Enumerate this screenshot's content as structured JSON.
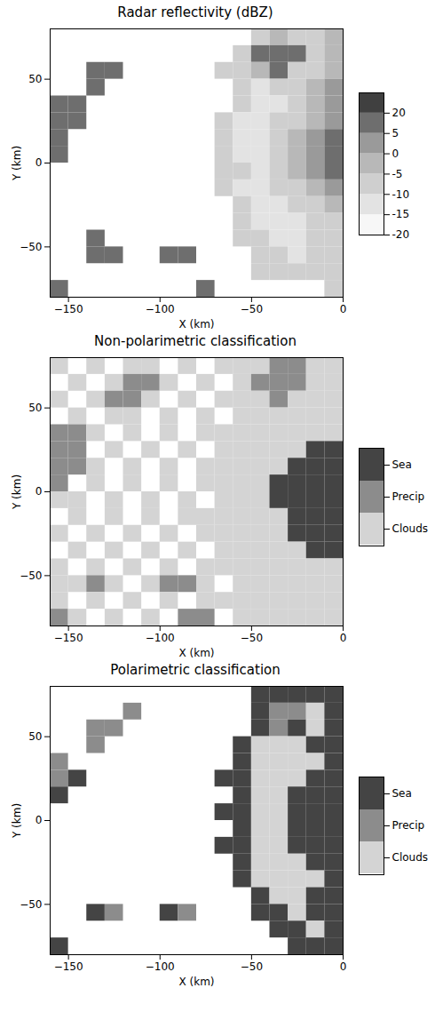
{
  "chart_data": [
    {
      "type": "heatmap",
      "title": "Radar reflectivity (dBZ)",
      "x_label": "X (km)",
      "y_label": "Y (km)",
      "xlim": [
        -160,
        0
      ],
      "xticks": [
        -150,
        -100,
        -50,
        0
      ],
      "ylim": [
        -80,
        80
      ],
      "yticks": [
        -50,
        0,
        50
      ],
      "x_edges": [
        -160,
        -150,
        -140,
        -130,
        -120,
        -110,
        -100,
        -90,
        -80,
        -70,
        -60,
        -50,
        -40,
        -30,
        -20,
        -10,
        0
      ],
      "y_edges": [
        80,
        70,
        60,
        50,
        40,
        30,
        20,
        10,
        0,
        -10,
        -20,
        -30,
        -40,
        -50,
        -60,
        -70,
        -80
      ],
      "cells": [
        [
          null,
          null,
          null,
          null,
          null,
          null,
          null,
          null,
          null,
          null,
          null,
          -10,
          -5,
          -10,
          -10,
          -5
        ],
        [
          null,
          null,
          null,
          null,
          null,
          null,
          null,
          null,
          null,
          null,
          -10,
          10,
          10,
          5,
          -10,
          -5
        ],
        [
          null,
          null,
          10,
          10,
          null,
          null,
          null,
          null,
          null,
          -10,
          -10,
          -5,
          5,
          -10,
          -10,
          -5
        ],
        [
          null,
          null,
          5,
          null,
          null,
          null,
          null,
          null,
          null,
          null,
          -10,
          -15,
          -10,
          -10,
          -5,
          0
        ],
        [
          10,
          10,
          null,
          null,
          null,
          null,
          null,
          null,
          null,
          null,
          -10,
          -15,
          -15,
          -10,
          -5,
          0
        ],
        [
          10,
          5,
          null,
          null,
          null,
          null,
          null,
          null,
          null,
          -10,
          -15,
          -15,
          -10,
          -10,
          -5,
          0
        ],
        [
          10,
          null,
          null,
          null,
          null,
          null,
          null,
          null,
          null,
          -10,
          -15,
          -15,
          -10,
          -5,
          0,
          5
        ],
        [
          5,
          null,
          null,
          null,
          null,
          null,
          null,
          null,
          null,
          -10,
          -15,
          -15,
          -10,
          -5,
          0,
          5
        ],
        [
          null,
          null,
          null,
          null,
          null,
          null,
          null,
          null,
          null,
          -10,
          -10,
          -15,
          -10,
          -5,
          0,
          5
        ],
        [
          null,
          null,
          null,
          null,
          null,
          null,
          null,
          null,
          null,
          -10,
          -15,
          -15,
          -10,
          -10,
          -5,
          0
        ],
        [
          null,
          null,
          null,
          null,
          null,
          null,
          null,
          null,
          null,
          null,
          -10,
          -15,
          -15,
          -10,
          -10,
          -5
        ],
        [
          null,
          null,
          null,
          null,
          null,
          null,
          null,
          null,
          null,
          null,
          -10,
          -15,
          -15,
          -15,
          -10,
          -10
        ],
        [
          null,
          null,
          5,
          null,
          null,
          null,
          null,
          null,
          null,
          null,
          -10,
          -10,
          -15,
          -15,
          -10,
          -10
        ],
        [
          null,
          null,
          10,
          5,
          null,
          null,
          10,
          5,
          null,
          null,
          null,
          -10,
          -10,
          -15,
          -10,
          -10
        ],
        [
          null,
          null,
          null,
          null,
          null,
          null,
          null,
          null,
          null,
          null,
          null,
          -10,
          -10,
          -10,
          -10,
          -10
        ],
        [
          5,
          null,
          null,
          null,
          null,
          null,
          null,
          null,
          10,
          null,
          null,
          null,
          null,
          null,
          null,
          -10
        ]
      ],
      "colorbar": {
        "ticks": [
          -20,
          -15,
          -10,
          -5,
          0,
          5,
          20
        ],
        "colors": [
          "#f7f7f7",
          "#e3e3e3",
          "#cfcfcf",
          "#b8b8b8",
          "#9a9a9a",
          "#6e6e6e",
          "#404040"
        ]
      }
    },
    {
      "type": "category_map",
      "title": "Non-polarimetric classification",
      "x_label": "X (km)",
      "y_label": "Y (km)",
      "xlim": [
        -160,
        0
      ],
      "xticks": [
        -150,
        -100,
        -50,
        0
      ],
      "ylim": [
        -80,
        80
      ],
      "yticks": [
        -50,
        0,
        50
      ],
      "x_edges": [
        -160,
        -150,
        -140,
        -130,
        -120,
        -110,
        -100,
        -90,
        -80,
        -70,
        -60,
        -50,
        -40,
        -30,
        -20,
        -10,
        0
      ],
      "y_edges": [
        80,
        70,
        60,
        50,
        40,
        30,
        20,
        10,
        0,
        -10,
        -20,
        -30,
        -40,
        -50,
        -60,
        -70,
        -80
      ],
      "cells": [
        [
          "Clouds",
          null,
          "Clouds",
          null,
          "Clouds",
          "Clouds",
          null,
          "Clouds",
          null,
          "Clouds",
          "Clouds",
          "Clouds",
          "Precip",
          "Precip",
          "Clouds",
          "Clouds"
        ],
        [
          null,
          "Clouds",
          null,
          "Clouds",
          "Precip",
          "Precip",
          "Clouds",
          null,
          "Clouds",
          null,
          "Clouds",
          "Precip",
          "Precip",
          "Precip",
          "Clouds",
          "Clouds"
        ],
        [
          "Clouds",
          null,
          "Clouds",
          "Precip",
          "Precip",
          "Clouds",
          null,
          "Clouds",
          null,
          "Clouds",
          "Clouds",
          "Clouds",
          "Precip",
          "Clouds",
          "Clouds",
          "Clouds"
        ],
        [
          null,
          "Clouds",
          null,
          "Clouds",
          "Clouds",
          null,
          "Clouds",
          null,
          "Clouds",
          null,
          "Clouds",
          "Clouds",
          "Clouds",
          "Clouds",
          "Clouds",
          "Clouds"
        ],
        [
          "Precip",
          "Precip",
          "Clouds",
          null,
          "Clouds",
          null,
          "Clouds",
          null,
          "Clouds",
          "Clouds",
          "Clouds",
          "Clouds",
          "Clouds",
          "Clouds",
          "Clouds",
          "Clouds"
        ],
        [
          "Precip",
          "Precip",
          null,
          "Clouds",
          null,
          "Clouds",
          null,
          "Clouds",
          null,
          "Clouds",
          "Clouds",
          "Clouds",
          "Clouds",
          "Clouds",
          "Sea",
          "Sea"
        ],
        [
          "Precip",
          "Precip",
          "Clouds",
          null,
          "Clouds",
          null,
          "Clouds",
          null,
          "Clouds",
          "Clouds",
          "Clouds",
          "Clouds",
          "Clouds",
          "Sea",
          "Sea",
          "Sea"
        ],
        [
          "Precip",
          null,
          "Clouds",
          null,
          "Clouds",
          null,
          "Clouds",
          null,
          "Clouds",
          "Clouds",
          "Clouds",
          "Clouds",
          "Sea",
          "Sea",
          "Sea",
          "Sea"
        ],
        [
          "Clouds",
          "Clouds",
          null,
          "Clouds",
          null,
          "Clouds",
          null,
          "Clouds",
          null,
          "Clouds",
          "Clouds",
          "Clouds",
          "Sea",
          "Sea",
          "Sea",
          "Sea"
        ],
        [
          null,
          "Clouds",
          null,
          "Clouds",
          null,
          "Clouds",
          null,
          "Clouds",
          "Clouds",
          "Clouds",
          "Clouds",
          "Clouds",
          "Clouds",
          "Sea",
          "Sea",
          "Sea"
        ],
        [
          "Clouds",
          null,
          "Clouds",
          null,
          "Clouds",
          null,
          "Clouds",
          null,
          "Clouds",
          "Clouds",
          "Clouds",
          "Clouds",
          "Clouds",
          "Sea",
          "Sea",
          "Sea"
        ],
        [
          null,
          "Clouds",
          null,
          "Clouds",
          null,
          "Clouds",
          null,
          "Clouds",
          null,
          "Clouds",
          "Clouds",
          "Clouds",
          "Clouds",
          "Clouds",
          "Sea",
          "Sea"
        ],
        [
          "Clouds",
          null,
          "Clouds",
          null,
          "Clouds",
          null,
          "Clouds",
          null,
          "Clouds",
          "Clouds",
          "Clouds",
          "Clouds",
          "Clouds",
          "Clouds",
          "Clouds",
          "Clouds"
        ],
        [
          "Clouds",
          "Clouds",
          "Precip",
          "Clouds",
          null,
          "Clouds",
          "Precip",
          "Precip",
          "Clouds",
          null,
          "Clouds",
          "Clouds",
          "Clouds",
          "Clouds",
          "Clouds",
          "Clouds"
        ],
        [
          "Clouds",
          null,
          "Clouds",
          null,
          "Clouds",
          null,
          "Clouds",
          null,
          "Clouds",
          "Clouds",
          "Clouds",
          "Clouds",
          "Clouds",
          "Clouds",
          "Clouds",
          "Clouds"
        ],
        [
          "Precip",
          "Clouds",
          null,
          "Clouds",
          null,
          "Clouds",
          null,
          "Precip",
          "Precip",
          null,
          "Clouds",
          "Clouds",
          "Clouds",
          "Clouds",
          "Clouds",
          "Clouds"
        ]
      ],
      "colorbar": {
        "classes": [
          "Sea",
          "Precip",
          "Clouds"
        ],
        "colors": [
          "#444444",
          "#8c8c8c",
          "#d4d4d4"
        ]
      }
    },
    {
      "type": "category_map",
      "title": "Polarimetric classification",
      "x_label": "X (km)",
      "y_label": "Y (km)",
      "xlim": [
        -160,
        0
      ],
      "xticks": [
        -150,
        -100,
        -50,
        0
      ],
      "ylim": [
        -80,
        80
      ],
      "yticks": [
        -50,
        0,
        50
      ],
      "x_edges": [
        -160,
        -150,
        -140,
        -130,
        -120,
        -110,
        -100,
        -90,
        -80,
        -70,
        -60,
        -50,
        -40,
        -30,
        -20,
        -10,
        0
      ],
      "y_edges": [
        80,
        70,
        60,
        50,
        40,
        30,
        20,
        10,
        0,
        -10,
        -20,
        -30,
        -40,
        -50,
        -60,
        -70,
        -80
      ],
      "cells": [
        [
          null,
          null,
          null,
          null,
          null,
          null,
          null,
          null,
          null,
          null,
          null,
          "Sea",
          "Sea",
          "Sea",
          "Sea",
          "Sea"
        ],
        [
          null,
          null,
          null,
          null,
          "Precip",
          null,
          null,
          null,
          null,
          null,
          null,
          "Sea",
          "Precip",
          "Precip",
          "Clouds",
          "Sea"
        ],
        [
          null,
          null,
          "Precip",
          "Precip",
          null,
          null,
          null,
          null,
          null,
          null,
          null,
          "Sea",
          "Precip",
          "Sea",
          "Clouds",
          "Sea"
        ],
        [
          null,
          null,
          "Precip",
          null,
          null,
          null,
          null,
          null,
          null,
          null,
          "Sea",
          "Clouds",
          "Clouds",
          "Clouds",
          "Sea",
          "Sea"
        ],
        [
          "Precip",
          null,
          null,
          null,
          null,
          null,
          null,
          null,
          null,
          null,
          "Sea",
          "Clouds",
          "Clouds",
          "Clouds",
          "Clouds",
          "Sea"
        ],
        [
          "Precip",
          "Sea",
          null,
          null,
          null,
          null,
          null,
          null,
          null,
          "Sea",
          "Sea",
          "Clouds",
          "Clouds",
          "Clouds",
          "Sea",
          "Sea"
        ],
        [
          "Sea",
          null,
          null,
          null,
          null,
          null,
          null,
          null,
          null,
          null,
          "Sea",
          "Clouds",
          "Clouds",
          "Sea",
          "Sea",
          "Sea"
        ],
        [
          null,
          null,
          null,
          null,
          null,
          null,
          null,
          null,
          null,
          "Sea",
          "Sea",
          "Clouds",
          "Clouds",
          "Sea",
          "Sea",
          "Sea"
        ],
        [
          null,
          null,
          null,
          null,
          null,
          null,
          null,
          null,
          null,
          null,
          "Sea",
          "Clouds",
          "Clouds",
          "Sea",
          "Sea",
          "Sea"
        ],
        [
          null,
          null,
          null,
          null,
          null,
          null,
          null,
          null,
          null,
          "Sea",
          "Sea",
          "Clouds",
          "Clouds",
          "Sea",
          "Sea",
          "Sea"
        ],
        [
          null,
          null,
          null,
          null,
          null,
          null,
          null,
          null,
          null,
          null,
          "Sea",
          "Clouds",
          "Clouds",
          "Clouds",
          "Sea",
          "Sea"
        ],
        [
          null,
          null,
          null,
          null,
          null,
          null,
          null,
          null,
          null,
          null,
          "Sea",
          "Clouds",
          "Clouds",
          "Clouds",
          "Clouds",
          "Sea"
        ],
        [
          null,
          null,
          null,
          null,
          null,
          null,
          null,
          null,
          null,
          null,
          null,
          "Sea",
          "Clouds",
          "Clouds",
          "Sea",
          "Sea"
        ],
        [
          null,
          null,
          "Sea",
          "Precip",
          null,
          null,
          "Sea",
          "Precip",
          null,
          null,
          null,
          "Sea",
          "Sea",
          "Clouds",
          "Sea",
          "Sea"
        ],
        [
          null,
          null,
          null,
          null,
          null,
          null,
          null,
          null,
          null,
          null,
          null,
          null,
          "Sea",
          "Sea",
          "Clouds",
          "Sea"
        ],
        [
          "Sea",
          null,
          null,
          null,
          null,
          null,
          null,
          null,
          null,
          null,
          null,
          null,
          null,
          "Sea",
          "Sea",
          "Sea"
        ]
      ],
      "colorbar": {
        "classes": [
          "Sea",
          "Precip",
          "Clouds"
        ],
        "colors": [
          "#444444",
          "#8c8c8c",
          "#d4d4d4"
        ]
      }
    }
  ]
}
